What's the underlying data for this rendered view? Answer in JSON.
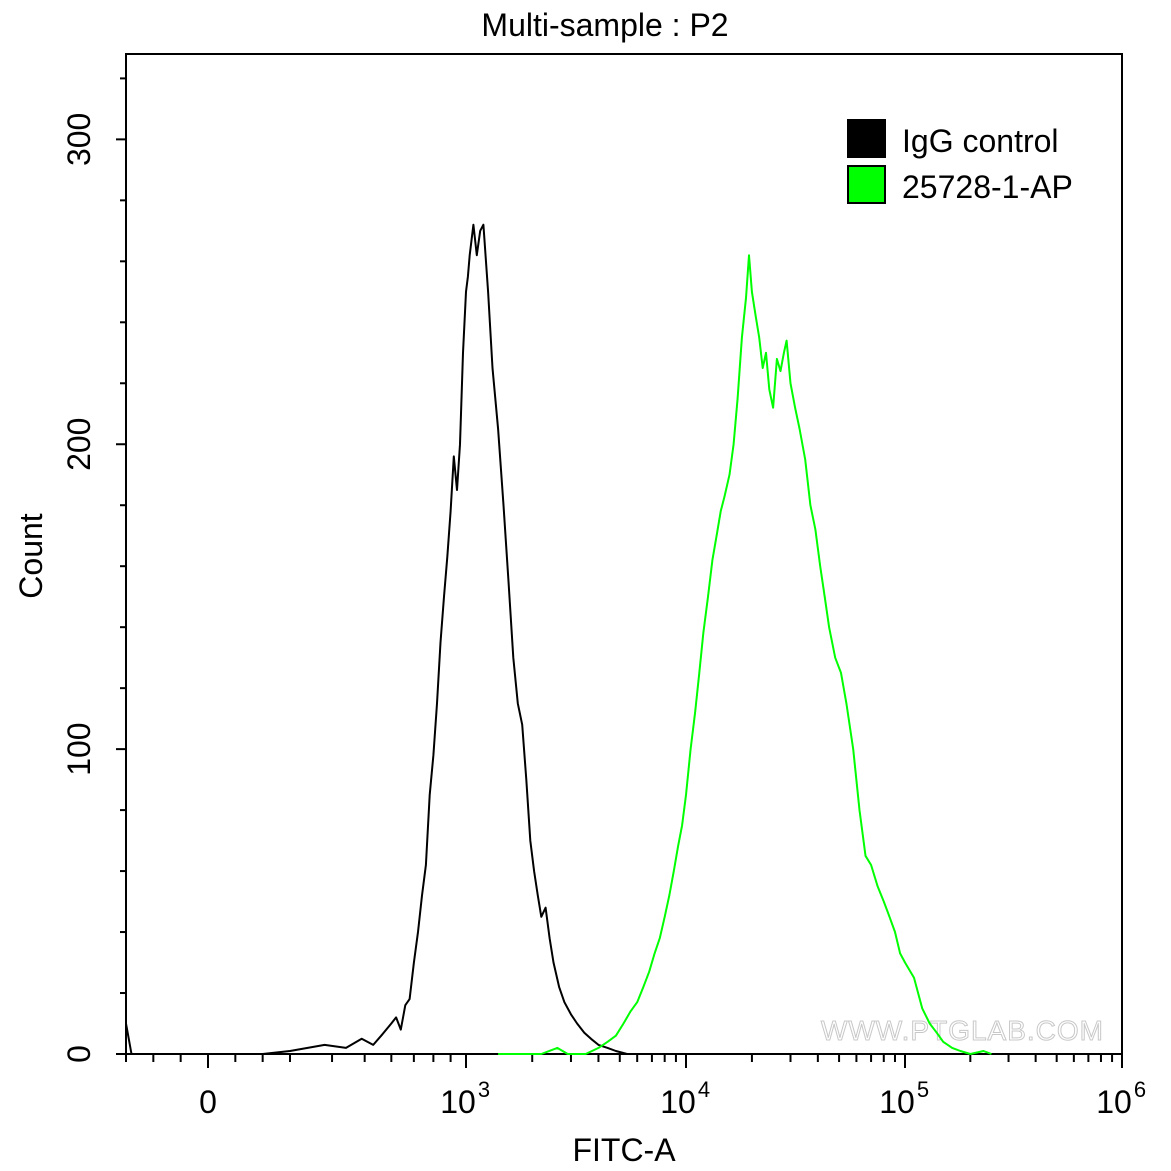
{
  "chart_data": {
    "type": "line",
    "title": "Multi-sample : P2",
    "xlabel": "FITC-A",
    "ylabel": "Count",
    "x_scale": "biexponential (log above ~10^3)",
    "xlim": [
      -300,
      1000000
    ],
    "ylim": [
      0,
      328
    ],
    "x_ticks": [
      {
        "value": 0,
        "label": "0"
      },
      {
        "value": 1000,
        "base": "10",
        "exp": "3"
      },
      {
        "value": 10000,
        "base": "10",
        "exp": "4"
      },
      {
        "value": 100000,
        "base": "10",
        "exp": "5"
      },
      {
        "value": 1000000,
        "base": "10",
        "exp": "6"
      }
    ],
    "y_ticks": [
      {
        "value": 0,
        "label": "0"
      },
      {
        "value": 100,
        "label": "100"
      },
      {
        "value": 200,
        "label": "200"
      },
      {
        "value": 300,
        "label": "300"
      }
    ],
    "legend_position": "top-right",
    "watermark": "WWW.PTGLAB.COM",
    "series": [
      {
        "name": "IgG control",
        "color": "#000000",
        "points": [
          [
            -300,
            10
          ],
          [
            -280,
            0
          ],
          [
            -120,
            0
          ],
          [
            200,
            0
          ],
          [
            300,
            1
          ],
          [
            380,
            3
          ],
          [
            440,
            2
          ],
          [
            490,
            5
          ],
          [
            530,
            3
          ],
          [
            560,
            6
          ],
          [
            600,
            10
          ],
          [
            620,
            12
          ],
          [
            640,
            8
          ],
          [
            660,
            16
          ],
          [
            680,
            18
          ],
          [
            700,
            30
          ],
          [
            720,
            40
          ],
          [
            740,
            52
          ],
          [
            760,
            62
          ],
          [
            780,
            85
          ],
          [
            800,
            98
          ],
          [
            820,
            115
          ],
          [
            840,
            135
          ],
          [
            860,
            150
          ],
          [
            880,
            163
          ],
          [
            900,
            178
          ],
          [
            920,
            196
          ],
          [
            940,
            185
          ],
          [
            960,
            200
          ],
          [
            980,
            230
          ],
          [
            1000,
            250
          ],
          [
            1020,
            255
          ],
          [
            1040,
            262
          ],
          [
            1080,
            272
          ],
          [
            1120,
            262
          ],
          [
            1160,
            270
          ],
          [
            1200,
            272
          ],
          [
            1260,
            250
          ],
          [
            1320,
            225
          ],
          [
            1400,
            205
          ],
          [
            1480,
            180
          ],
          [
            1560,
            155
          ],
          [
            1640,
            130
          ],
          [
            1720,
            115
          ],
          [
            1800,
            108
          ],
          [
            1880,
            90
          ],
          [
            1960,
            70
          ],
          [
            2040,
            60
          ],
          [
            2120,
            52
          ],
          [
            2200,
            45
          ],
          [
            2300,
            48
          ],
          [
            2400,
            38
          ],
          [
            2500,
            30
          ],
          [
            2650,
            22
          ],
          [
            2800,
            17
          ],
          [
            3000,
            13
          ],
          [
            3200,
            10
          ],
          [
            3450,
            7
          ],
          [
            3700,
            5
          ],
          [
            4000,
            3
          ],
          [
            4400,
            2
          ],
          [
            4800,
            1
          ],
          [
            5400,
            0
          ],
          [
            6000,
            0
          ]
        ]
      },
      {
        "name": "25728-1-AP",
        "color": "#00ff00",
        "points": [
          [
            1400,
            0
          ],
          [
            2200,
            0
          ],
          [
            2600,
            2
          ],
          [
            2900,
            0
          ],
          [
            3500,
            0
          ],
          [
            4000,
            2
          ],
          [
            4400,
            4
          ],
          [
            4800,
            6
          ],
          [
            5200,
            10
          ],
          [
            5600,
            14
          ],
          [
            6000,
            17
          ],
          [
            6400,
            22
          ],
          [
            6800,
            27
          ],
          [
            7200,
            33
          ],
          [
            7600,
            38
          ],
          [
            8000,
            45
          ],
          [
            8400,
            52
          ],
          [
            8800,
            60
          ],
          [
            9200,
            68
          ],
          [
            9600,
            75
          ],
          [
            10000,
            85
          ],
          [
            10500,
            100
          ],
          [
            11000,
            112
          ],
          [
            11500,
            125
          ],
          [
            12000,
            138
          ],
          [
            12600,
            150
          ],
          [
            13200,
            162
          ],
          [
            13800,
            170
          ],
          [
            14400,
            178
          ],
          [
            15000,
            183
          ],
          [
            15800,
            190
          ],
          [
            16500,
            200
          ],
          [
            17200,
            215
          ],
          [
            18000,
            235
          ],
          [
            18800,
            248
          ],
          [
            19400,
            262
          ],
          [
            20000,
            250
          ],
          [
            20800,
            242
          ],
          [
            21600,
            235
          ],
          [
            22400,
            225
          ],
          [
            23200,
            230
          ],
          [
            24000,
            218
          ],
          [
            25000,
            212
          ],
          [
            26000,
            228
          ],
          [
            27000,
            224
          ],
          [
            28000,
            230
          ],
          [
            28800,
            234
          ],
          [
            30000,
            220
          ],
          [
            31500,
            212
          ],
          [
            33000,
            205
          ],
          [
            35000,
            195
          ],
          [
            37000,
            180
          ],
          [
            39000,
            172
          ],
          [
            41000,
            160
          ],
          [
            43000,
            150
          ],
          [
            45000,
            140
          ],
          [
            48000,
            130
          ],
          [
            51000,
            125
          ],
          [
            54000,
            115
          ],
          [
            58000,
            100
          ],
          [
            62000,
            80
          ],
          [
            66000,
            65
          ],
          [
            70000,
            62
          ],
          [
            75000,
            55
          ],
          [
            80000,
            50
          ],
          [
            85000,
            45
          ],
          [
            90000,
            40
          ],
          [
            95000,
            33
          ],
          [
            100000,
            30
          ],
          [
            110000,
            25
          ],
          [
            120000,
            15
          ],
          [
            130000,
            10
          ],
          [
            140000,
            7
          ],
          [
            150000,
            4
          ],
          [
            165000,
            2
          ],
          [
            180000,
            1
          ],
          [
            200000,
            0
          ],
          [
            230000,
            1
          ],
          [
            250000,
            0
          ]
        ]
      }
    ]
  }
}
